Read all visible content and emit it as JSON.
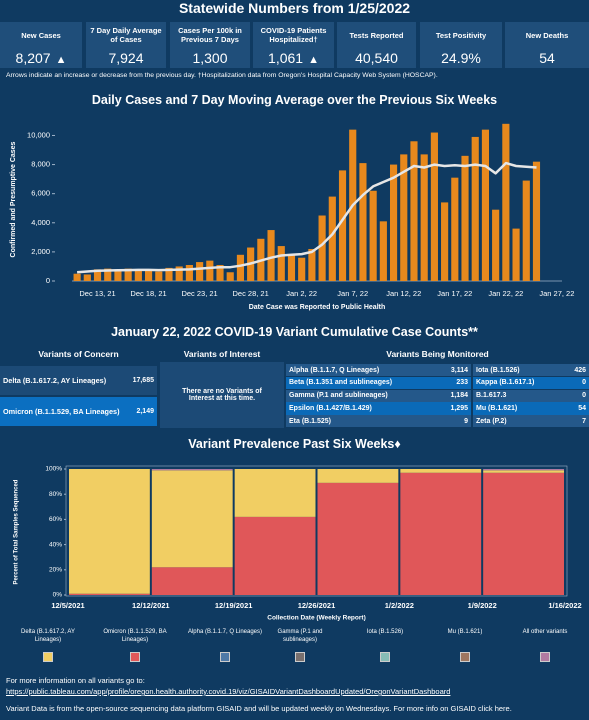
{
  "header": {
    "title": "Statewide Numbers from 1/25/2022"
  },
  "kpis": [
    {
      "label": "New Cases",
      "value": "8,207",
      "trend": "up"
    },
    {
      "label": "7 Day Daily Average of Cases",
      "value": "7,924"
    },
    {
      "label": "Cases Per 100k in Previous 7 Days",
      "value": "1,300"
    },
    {
      "label": "COVID-19 Patients Hospitalized†",
      "value": "1,061",
      "trend": "up"
    },
    {
      "label": "Tests Reported",
      "value": "40,540"
    },
    {
      "label": "Test Positivity",
      "value": "24.9%"
    },
    {
      "label": "New Deaths",
      "value": "54"
    }
  ],
  "note": "Arrows indicate an increase or decrease from the previous day. †Hospitalization data from Oregon's Hospital Capacity Web System (HOSCAP).",
  "chart_data": [
    {
      "type": "bar_line",
      "title": "Daily Cases and 7 Day Moving Average over the Previous Six Weeks",
      "x_label": "Date Case was Reported to Public Health",
      "y_label": "Confirmed and Presumptive Cases",
      "categories": [
        null,
        null,
        "Dec 13, 21",
        null,
        null,
        null,
        null,
        "Dec 18, 21",
        null,
        null,
        null,
        null,
        "Dec 23, 21",
        null,
        null,
        null,
        null,
        "Dec 28, 21",
        null,
        null,
        null,
        null,
        "Jan 2, 22",
        null,
        null,
        null,
        null,
        "Jan 7, 22",
        null,
        null,
        null,
        null,
        "Jan 12, 22",
        null,
        null,
        null,
        null,
        "Jan 17, 22",
        null,
        null,
        null,
        null,
        "Jan 22, 22",
        null,
        null,
        null,
        null,
        "Jan 27, 22"
      ],
      "series": [
        {
          "kind": "bar",
          "color": "#e8891d",
          "values": [
            500,
            450,
            800,
            850,
            800,
            850,
            800,
            700,
            650,
            900,
            1000,
            1100,
            1300,
            1400,
            1100,
            600,
            1800,
            2300,
            2900,
            3500,
            2400,
            1800,
            1600,
            2200,
            4500,
            5800,
            7600,
            10400,
            8100,
            6200,
            4100,
            8000,
            8700,
            9600,
            8700,
            10200,
            5400,
            7100,
            8600,
            9900,
            10400,
            4900,
            10800,
            3600,
            6900,
            8200,
            null,
            null
          ]
        },
        {
          "kind": "line",
          "color": "#e6e6e6",
          "values": [
            600,
            650,
            700,
            720,
            740,
            750,
            760,
            760,
            750,
            760,
            780,
            800,
            850,
            900,
            950,
            950,
            1050,
            1200,
            1400,
            1600,
            1750,
            1800,
            1850,
            2000,
            2500,
            3200,
            4200,
            5200,
            5900,
            6500,
            6800,
            7100,
            7500,
            7900,
            7800,
            8000,
            7900,
            7950,
            7900,
            8000,
            7900,
            7400,
            8100,
            7900,
            7850,
            7800,
            null,
            null
          ]
        }
      ],
      "ylim": [
        0,
        11200
      ],
      "yticks": [
        0,
        {
          "value": 2000,
          "label": "2,000"
        },
        {
          "value": 4000,
          "label": "4,000"
        },
        {
          "value": 6000,
          "label": "6,000"
        },
        {
          "value": 8000,
          "label": "8,000"
        },
        {
          "value": 10000,
          "label": "10,000"
        }
      ],
      "grid": false
    },
    {
      "type": "stacked_histogram",
      "title": "Variant Prevalence Past Six Weeks♦",
      "x_label": "Collection Date (Weekly Report)",
      "y_label": "Percent of Total Samples Sequenced",
      "bins": [
        "12/5/2021",
        "12/12/2021",
        "12/19/2021",
        "12/26/2021",
        "1/2/2022",
        "1/9/2022",
        "1/16/2022"
      ],
      "series": [
        {
          "name": "Delta (B.1.617.2, AY Lineages)",
          "color": "#f1ce63",
          "values": [
            99,
            77,
            38,
            11,
            3,
            2
          ]
        },
        {
          "name": "Omicron (B.1.1.529, BA Lineages)",
          "color": "#e05759",
          "values": [
            1,
            22,
            62,
            89,
            97,
            97
          ]
        },
        {
          "name": "Alpha (B.1.1.7, Q Lineages)",
          "color": "#4e79a7",
          "values": [
            0,
            0,
            0,
            0,
            0,
            0
          ]
        },
        {
          "name": "Gamma (P.1 and sublineages)",
          "color": "#79706e",
          "values": [
            0,
            0,
            0,
            0,
            0,
            0
          ]
        },
        {
          "name": "Iota (B.1.526)",
          "color": "#86bcb6",
          "values": [
            0,
            0,
            0,
            0,
            0,
            0
          ]
        },
        {
          "name": "Mu (B.1.621)",
          "color": "#9d7660",
          "values": [
            0,
            0,
            0,
            0,
            0,
            0
          ]
        },
        {
          "name": "All other variants",
          "color": "#b07aa1",
          "values": [
            0,
            1,
            0,
            0,
            0,
            1
          ]
        }
      ],
      "ylim": [
        0,
        100
      ],
      "yticks": [
        {
          "value": 0,
          "label": "0%"
        },
        {
          "value": 20,
          "label": "20%"
        },
        {
          "value": 40,
          "label": "40%"
        },
        {
          "value": 60,
          "label": "60%"
        },
        {
          "value": 80,
          "label": "80%"
        },
        {
          "value": 100,
          "label": "100%"
        }
      ],
      "grid": false
    }
  ],
  "variants": {
    "title": "January 22, 2022 COVID-19 Variant Cumulative Case Counts**",
    "concern": {
      "header": "Variants of Concern",
      "rows": [
        [
          "Delta (B.1.617.2, AY Lineages)",
          "17,685"
        ],
        [
          "Omicron (B.1.1.529, BA Lineages)",
          "2,149"
        ]
      ]
    },
    "interest": {
      "header": "Variants of Interest",
      "text": "There are no Variants of Interest at this time."
    },
    "monitored": {
      "header": "Variants Being Monitored",
      "left": [
        [
          "Alpha (B.1.1.7, Q Lineages)",
          "3,114"
        ],
        [
          "Beta (B.1.351 and sublineages)",
          "233"
        ],
        [
          "Gamma (P.1 and sublineages)",
          "1,184"
        ],
        [
          "Epsilon (B.1.427/B.1.429)",
          "1,295"
        ],
        [
          "Eta (B.1.525)",
          "9"
        ]
      ],
      "right": [
        [
          "Iota (B.1.526)",
          "426"
        ],
        [
          "Kappa (B.1.617.1)",
          "0"
        ],
        [
          "B.1.617.3",
          "0"
        ],
        [
          "Mu (B.1.621)",
          "54"
        ],
        [
          "Zeta (P.2)",
          "7"
        ]
      ]
    }
  },
  "footer": {
    "info": "For more information on all variants go to:",
    "url": "https://public.tableau.com/app/profile/oregon.health.authority.covid.19/viz/GISAIDVariantDashboardUpdated/OregonVariantDashboard",
    "source": "Variant Data is from the open-source sequencing data platform GISAID and will be updated weekly on Wednesdays. For more info on GISAID click here."
  }
}
